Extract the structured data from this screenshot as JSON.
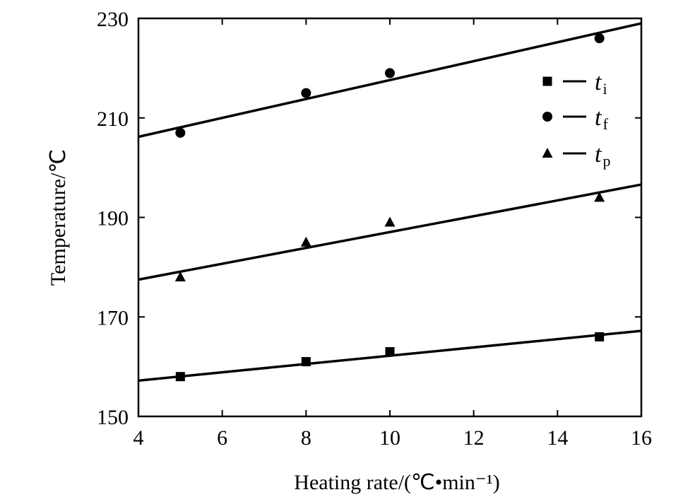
{
  "chart_data": {
    "type": "scatter",
    "xlabel": "Heating rate/(℃•min⁻¹)",
    "ylabel": "Temperature/℃",
    "xlim": [
      4,
      16
    ],
    "ylim": [
      150,
      230
    ],
    "xticks": [
      4,
      6,
      8,
      10,
      12,
      14,
      16
    ],
    "yticks": [
      150,
      170,
      190,
      210,
      230
    ],
    "x_tick_labels": [
      "4",
      "6",
      "8",
      "10",
      "12",
      "14",
      "16"
    ],
    "y_tick_labels": [
      "150",
      "170",
      "190",
      "210",
      "230"
    ],
    "grid": false,
    "legend_position": "top-right",
    "series": [
      {
        "name": "ti",
        "legend_main": "t",
        "legend_sub": "i",
        "marker": "square",
        "x": [
          5,
          8,
          10,
          15
        ],
        "y": [
          158,
          161,
          163,
          166
        ],
        "fit": {
          "x": [
            4,
            16
          ],
          "y": [
            157.2,
            167.2
          ]
        }
      },
      {
        "name": "tf",
        "legend_main": "t",
        "legend_sub": "f",
        "marker": "circle",
        "x": [
          5,
          8,
          10,
          15
        ],
        "y": [
          207,
          215,
          219,
          226
        ],
        "fit": {
          "x": [
            4,
            16
          ],
          "y": [
            206.2,
            229
          ]
        }
      },
      {
        "name": "tp",
        "legend_main": "t",
        "legend_sub": "p",
        "marker": "triangle",
        "x": [
          5,
          8,
          10,
          15
        ],
        "y": [
          178,
          185,
          189,
          194
        ],
        "fit": {
          "x": [
            4,
            16
          ],
          "y": [
            177.5,
            196.6
          ]
        }
      }
    ]
  }
}
